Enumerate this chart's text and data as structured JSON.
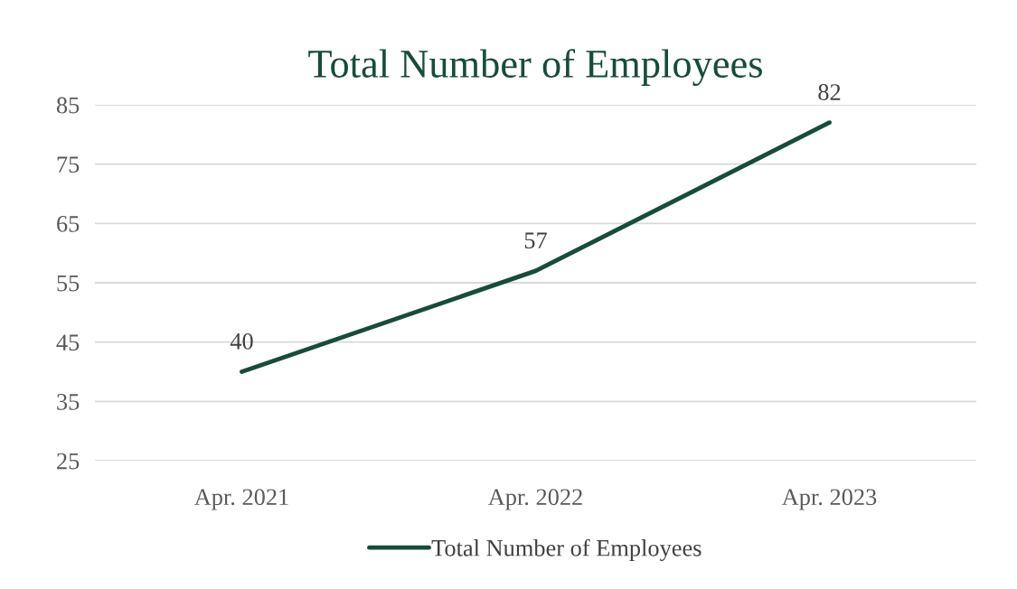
{
  "chart_data": {
    "type": "line",
    "title": "Total Number of Employees",
    "categories": [
      "Apr. 2021",
      "Apr. 2022",
      "Apr. 2023"
    ],
    "series": [
      {
        "name": "Total Number of Employees",
        "color": "#174d38",
        "values": [
          40,
          57,
          82
        ]
      }
    ],
    "ylim": [
      25,
      85
    ],
    "yticks": [
      25,
      35,
      45,
      55,
      65,
      75,
      85
    ],
    "grid": "y",
    "legend": "bottom",
    "data_labels": true,
    "marker": "none",
    "line_style": "solid"
  }
}
